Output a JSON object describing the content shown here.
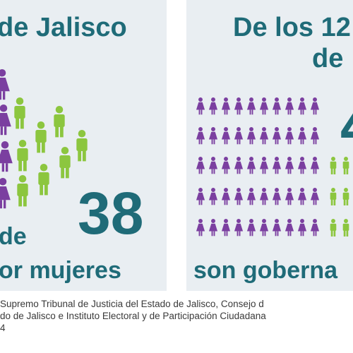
{
  "colors": {
    "panel_bg": "#e9eef2",
    "teal_text": "#1f6b78",
    "purple_women": "#7b3fa0",
    "green_men": "#8cc63f"
  },
  "icons": {
    "woman": "woman-figure-icon",
    "man": "man-figure-icon"
  },
  "left_panel": {
    "headline": "de Jalisco",
    "big_number": "38",
    "line_de": "de",
    "line_mujeres": "or mujeres"
  },
  "right_panel": {
    "headline_line1": "De los 12",
    "headline_line2": "de",
    "big_number_partial": "4",
    "bottom_line": "son goberna"
  },
  "footer": {
    "source_line1": "Supremo Tribunal de Justicia del Estado de Jalisco, Consejo d",
    "source_line2": "do de Jalisco e Instituto Electoral y de Participación Ciudadana",
    "source_line3": "4"
  }
}
